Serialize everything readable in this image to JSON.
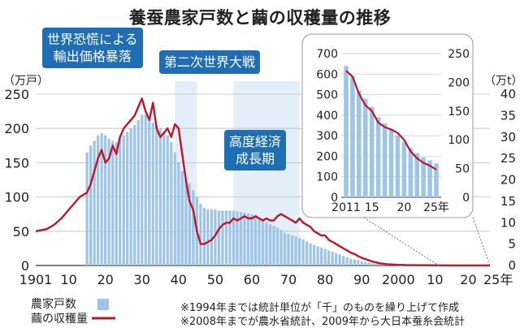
{
  "title": "養蚕農家戸数と繭の収穫量の推移",
  "unit_left": "（万戸）",
  "unit_right": "（万t）",
  "callouts": {
    "panic": [
      "世界恐慌による",
      "輸出価格暴落"
    ],
    "war": "第二次世界大戦",
    "growth": [
      "高度経済",
      "成長期"
    ]
  },
  "legend": {
    "bars": "農家戸数",
    "line": "繭の収穫量"
  },
  "notes": [
    "※1994年までは統計単位が「千」のものを繰り上げて作成",
    "※2008年までが農水省統計、2009年から大日本蚕糸会統計"
  ],
  "colors": {
    "bar": "#9ec5e8",
    "line": "#c0142b",
    "accent": "#1f6db3",
    "band": "#e4eef8"
  },
  "chart_data": [
    {
      "type": "bar+line",
      "x_tick_labels": [
        "1901",
        "10",
        "20",
        "30",
        "40",
        "50",
        "60",
        "70",
        "80",
        "90",
        "2000",
        "10",
        "20",
        "25年"
      ],
      "y_left": {
        "label": "（万戸）",
        "ticks": [
          0,
          50,
          100,
          150,
          200,
          250
        ],
        "range": [
          0,
          250
        ]
      },
      "y_right": {
        "label": "（万t）",
        "ticks": [
          0,
          5,
          10,
          15,
          20,
          25,
          30,
          35,
          40
        ],
        "range": [
          0,
          40
        ]
      },
      "shaded_periods": [
        {
          "from": 1939,
          "to": 1945
        },
        {
          "from": 1955,
          "to": 1973
        }
      ],
      "series": [
        {
          "name": "農家戸数",
          "axis": "left",
          "type": "bar",
          "points": [
            [
              1915,
              165
            ],
            [
              1916,
              175
            ],
            [
              1917,
              182
            ],
            [
              1918,
              190
            ],
            [
              1919,
              193
            ],
            [
              1920,
              190
            ],
            [
              1921,
              185
            ],
            [
              1922,
              182
            ],
            [
              1923,
              180
            ],
            [
              1924,
              185
            ],
            [
              1925,
              190
            ],
            [
              1926,
              195
            ],
            [
              1927,
              200
            ],
            [
              1928,
              205
            ],
            [
              1929,
              212
            ],
            [
              1930,
              220
            ],
            [
              1931,
              220
            ],
            [
              1932,
              215
            ],
            [
              1933,
              208
            ],
            [
              1934,
              205
            ],
            [
              1935,
              200
            ],
            [
              1936,
              195
            ],
            [
              1937,
              190
            ],
            [
              1938,
              180
            ],
            [
              1939,
              165
            ],
            [
              1940,
              150
            ],
            [
              1941,
              138
            ],
            [
              1942,
              128
            ],
            [
              1943,
              120
            ],
            [
              1944,
              110
            ],
            [
              1945,
              100
            ],
            [
              1946,
              90
            ],
            [
              1947,
              84
            ],
            [
              1948,
              82
            ],
            [
              1949,
              82
            ],
            [
              1950,
              82
            ],
            [
              1951,
              80
            ],
            [
              1952,
              80
            ],
            [
              1953,
              80
            ],
            [
              1954,
              80
            ],
            [
              1955,
              80
            ],
            [
              1956,
              79
            ],
            [
              1957,
              78
            ],
            [
              1958,
              77
            ],
            [
              1959,
              76
            ],
            [
              1960,
              75
            ],
            [
              1961,
              72
            ],
            [
              1962,
              70
            ],
            [
              1963,
              66
            ],
            [
              1964,
              63
            ],
            [
              1965,
              60
            ],
            [
              1966,
              58
            ],
            [
              1967,
              55
            ],
            [
              1968,
              52
            ],
            [
              1969,
              48
            ],
            [
              1970,
              46
            ],
            [
              1971,
              44
            ],
            [
              1972,
              42
            ],
            [
              1973,
              40
            ],
            [
              1974,
              38
            ],
            [
              1975,
              35
            ],
            [
              1976,
              32
            ],
            [
              1977,
              30
            ],
            [
              1978,
              28
            ],
            [
              1979,
              26
            ],
            [
              1980,
              24
            ],
            [
              1981,
              22
            ],
            [
              1982,
              20
            ],
            [
              1983,
              18
            ],
            [
              1984,
              16
            ],
            [
              1985,
              14
            ],
            [
              1986,
              12
            ],
            [
              1987,
              10
            ],
            [
              1988,
              9
            ],
            [
              1989,
              8
            ],
            [
              1990,
              6
            ],
            [
              1991,
              5
            ],
            [
              1992,
              4
            ],
            [
              1993,
              3
            ],
            [
              1994,
              2.5
            ],
            [
              1995,
              2
            ],
            [
              1996,
              1.6
            ],
            [
              1997,
              1.3
            ],
            [
              1998,
              1
            ],
            [
              1999,
              0.8
            ],
            [
              2000,
              0.6
            ],
            [
              2001,
              0.5
            ],
            [
              2002,
              0.4
            ],
            [
              2003,
              0.3
            ],
            [
              2004,
              0.3
            ],
            [
              2005,
              0.2
            ],
            [
              2006,
              0.2
            ],
            [
              2007,
              0.2
            ],
            [
              2008,
              0.1
            ],
            [
              2009,
              0.1
            ],
            [
              2010,
              0.1
            ]
          ]
        },
        {
          "name": "繭の収穫量",
          "axis": "right",
          "type": "line",
          "points": [
            [
              1901,
              8
            ],
            [
              1904,
              8.5
            ],
            [
              1906,
              9.5
            ],
            [
              1908,
              11
            ],
            [
              1910,
              13
            ],
            [
              1912,
              15
            ],
            [
              1913,
              16
            ],
            [
              1915,
              17
            ],
            [
              1916,
              19
            ],
            [
              1917,
              22
            ],
            [
              1918,
              25
            ],
            [
              1919,
              27
            ],
            [
              1920,
              24
            ],
            [
              1921,
              25
            ],
            [
              1922,
              28
            ],
            [
              1923,
              26
            ],
            [
              1924,
              30
            ],
            [
              1925,
              32
            ],
            [
              1926,
              33
            ],
            [
              1927,
              34
            ],
            [
              1928,
              35
            ],
            [
              1929,
              37
            ],
            [
              1930,
              39
            ],
            [
              1931,
              36
            ],
            [
              1932,
              34
            ],
            [
              1933,
              38
            ],
            [
              1934,
              32
            ],
            [
              1935,
              30
            ],
            [
              1936,
              31
            ],
            [
              1937,
              32
            ],
            [
              1938,
              30
            ],
            [
              1939,
              33
            ],
            [
              1940,
              32
            ],
            [
              1941,
              26
            ],
            [
              1942,
              20
            ],
            [
              1943,
              15
            ],
            [
              1944,
              13
            ],
            [
              1945,
              8
            ],
            [
              1946,
              5
            ],
            [
              1947,
              5
            ],
            [
              1948,
              5.5
            ],
            [
              1949,
              6
            ],
            [
              1950,
              7
            ],
            [
              1951,
              8.5
            ],
            [
              1952,
              9.5
            ],
            [
              1953,
              10
            ],
            [
              1954,
              10
            ],
            [
              1955,
              11
            ],
            [
              1956,
              10.5
            ],
            [
              1957,
              11
            ],
            [
              1958,
              11.5
            ],
            [
              1959,
              11
            ],
            [
              1960,
              11
            ],
            [
              1961,
              11.5
            ],
            [
              1962,
              11
            ],
            [
              1963,
              10.5
            ],
            [
              1964,
              11
            ],
            [
              1965,
              10.5
            ],
            [
              1966,
              10.5
            ],
            [
              1967,
              11.5
            ],
            [
              1968,
              12
            ],
            [
              1969,
              11.5
            ],
            [
              1970,
              11
            ],
            [
              1971,
              10.5
            ],
            [
              1972,
              10
            ],
            [
              1973,
              11
            ],
            [
              1974,
              10
            ],
            [
              1975,
              9.5
            ],
            [
              1976,
              9
            ],
            [
              1977,
              8
            ],
            [
              1978,
              7.5
            ],
            [
              1979,
              7
            ],
            [
              1980,
              7
            ],
            [
              1981,
              6
            ],
            [
              1982,
              5.5
            ],
            [
              1983,
              5
            ],
            [
              1984,
              4.5
            ],
            [
              1985,
              4
            ],
            [
              1986,
              3.5
            ],
            [
              1987,
              3
            ],
            [
              1988,
              2.7
            ],
            [
              1989,
              2.2
            ],
            [
              1990,
              1.8
            ],
            [
              1991,
              1.5
            ],
            [
              1992,
              1.2
            ],
            [
              1993,
              0.9
            ],
            [
              1994,
              0.7
            ],
            [
              1995,
              0.5
            ],
            [
              1996,
              0.4
            ],
            [
              1997,
              0.3
            ],
            [
              1998,
              0.25
            ],
            [
              1999,
              0.2
            ],
            [
              2000,
              0.15
            ],
            [
              2002,
              0.1
            ],
            [
              2004,
              0.08
            ],
            [
              2006,
              0.06
            ],
            [
              2008,
              0.05
            ],
            [
              2010,
              0.03
            ],
            [
              2015,
              0.02
            ],
            [
              2020,
              0.01
            ],
            [
              2025,
              0.01
            ]
          ]
        }
      ]
    },
    {
      "type": "bar+line",
      "name": "inset",
      "x_tick_labels": [
        "2011",
        "15",
        "20",
        "25年"
      ],
      "y_left": {
        "ticks": [
          0,
          100,
          200,
          300,
          400,
          500,
          600,
          700
        ],
        "range": [
          0,
          700
        ]
      },
      "y_right": {
        "ticks": [
          0,
          50,
          100,
          150,
          200,
          250
        ],
        "range": [
          0,
          250
        ]
      },
      "series": [
        {
          "name": "農家戸数",
          "axis": "left",
          "type": "bar",
          "points": [
            [
              2011,
              640
            ],
            [
              2012,
              590
            ],
            [
              2013,
              520
            ],
            [
              2014,
              480
            ],
            [
              2015,
              440
            ],
            [
              2016,
              390
            ],
            [
              2017,
              360
            ],
            [
              2018,
              330
            ],
            [
              2019,
              300
            ],
            [
              2020,
              270
            ],
            [
              2021,
              240
            ],
            [
              2022,
              215
            ],
            [
              2023,
              195
            ],
            [
              2024,
              180
            ],
            [
              2025,
              165
            ]
          ]
        },
        {
          "name": "繭の収穫量",
          "axis": "right",
          "type": "line",
          "points": [
            [
              2011,
              220
            ],
            [
              2012,
              210
            ],
            [
              2013,
              180
            ],
            [
              2014,
              160
            ],
            [
              2015,
              150
            ],
            [
              2016,
              130
            ],
            [
              2017,
              122
            ],
            [
              2018,
              118
            ],
            [
              2019,
              112
            ],
            [
              2020,
              100
            ],
            [
              2021,
              80
            ],
            [
              2022,
              68
            ],
            [
              2023,
              60
            ],
            [
              2024,
              55
            ],
            [
              2025,
              48
            ]
          ]
        }
      ]
    }
  ]
}
